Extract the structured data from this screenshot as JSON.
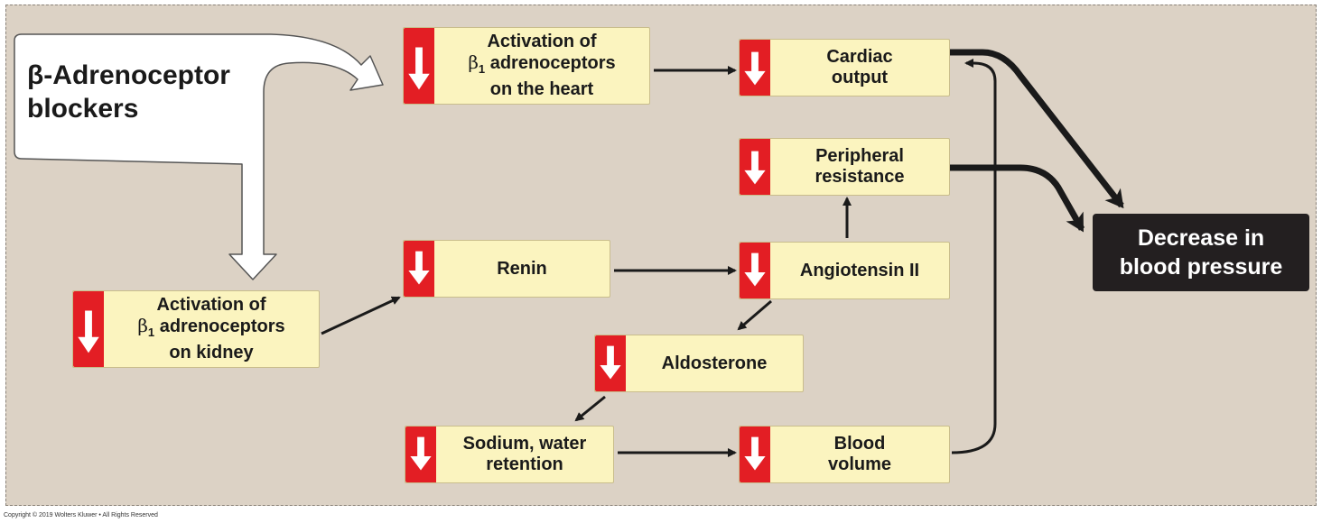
{
  "blockers": {
    "line1": "β-Adrenoceptor",
    "line2": "blockers"
  },
  "boxes": {
    "heart": {
      "l1": "Activation of",
      "l2": "β",
      "l2sub": "1",
      "l2rest": " adrenoceptors",
      "l3": "on the heart"
    },
    "kidney": {
      "l1": "Activation of",
      "l2": "β",
      "l2sub": "1",
      "l2rest": " adrenoceptors",
      "l3": "on kidney"
    },
    "cardiac": {
      "l1": "Cardiac",
      "l2": "output"
    },
    "peripheral": {
      "l1": "Peripheral",
      "l2": "resistance"
    },
    "renin": {
      "l1": "Renin"
    },
    "angiotensin": {
      "l1": "Angiotensin II"
    },
    "aldosterone": {
      "l1": "Aldosterone"
    },
    "sodium": {
      "l1": "Sodium, water",
      "l2": "retention"
    },
    "blood": {
      "l1": "Blood",
      "l2": "volume"
    }
  },
  "result": {
    "l1": "Decrease in",
    "l2": "blood pressure"
  },
  "colors": {
    "indicator": "#e31e24",
    "box": "#fbf4bf",
    "panel": "#dcd2c5",
    "result": "#231f20"
  },
  "copyright": "Copyright © 2019 Wolters Kluwer • All Rights Reserved"
}
